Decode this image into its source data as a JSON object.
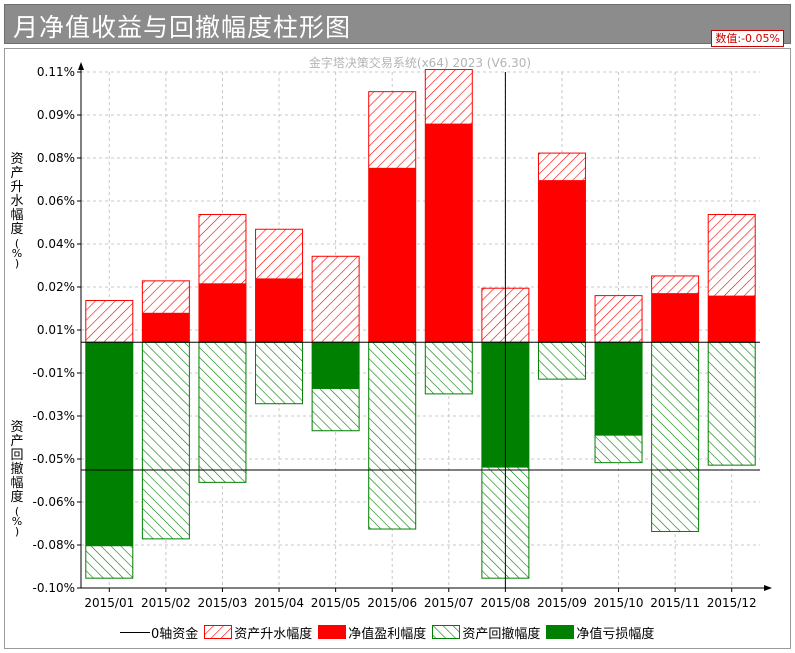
{
  "header": {
    "title": "月净值收益与回撤幅度柱形图",
    "value_label": "数值:",
    "value": "-0.05%"
  },
  "watermark": "金字塔决策交易系统(x64) 2023 (V6.30)",
  "colors": {
    "profit": "#ff0000",
    "rise_hatch": "#ff0000",
    "loss": "#008000",
    "drawdown_hatch": "#008000",
    "grid": "#c8c8c8",
    "title_bg": "#8c8c8c"
  },
  "chart_data": {
    "type": "bar",
    "categories": [
      "2015/01",
      "2015/02",
      "2015/03",
      "2015/04",
      "2015/05",
      "2015/06",
      "2015/07",
      "2015/08",
      "2015/09",
      "2015/10",
      "2015/11",
      "2015/12"
    ],
    "y_tick_labels": [
      "0.11%",
      "0.09%",
      "0.08%",
      "0.06%",
      "0.04%",
      "0.02%",
      "0.01%",
      "-0.01%",
      "-0.03%",
      "-0.05%",
      "-0.06%",
      "-0.08%",
      "-0.10%"
    ],
    "ylim": [
      -0.1,
      0.11
    ],
    "ylabel_top": "资产升水幅度(%)",
    "ylabel_bottom": "资产回撤幅度(%)",
    "series": [
      {
        "name": "资产升水幅度",
        "style": "hatch-red",
        "values": [
          0.017,
          0.025,
          0.052,
          0.046,
          0.035,
          0.102,
          0.111,
          0.022,
          0.077,
          0.019,
          0.027,
          0.052
        ]
      },
      {
        "name": "净值盈利幅度",
        "style": "solid-red",
        "values": [
          0.0,
          0.012,
          0.024,
          0.026,
          0.0,
          0.071,
          0.089,
          0.0,
          0.066,
          0.0,
          0.02,
          0.019
        ]
      },
      {
        "name": "资产回撤幅度",
        "style": "hatch-green",
        "values": [
          -0.096,
          -0.08,
          -0.057,
          -0.025,
          -0.036,
          -0.076,
          -0.021,
          -0.096,
          -0.015,
          -0.049,
          -0.077,
          -0.05
        ]
      },
      {
        "name": "净值亏损幅度",
        "style": "solid-green",
        "values": [
          -0.083,
          0.0,
          0.0,
          0.0,
          -0.019,
          0.0,
          0.0,
          -0.051,
          0.0,
          -0.038,
          0.0,
          0.0
        ]
      }
    ],
    "zero_line_label": "0轴资金",
    "crosshair": {
      "category": "2015/08",
      "value": -0.052
    },
    "grid": true,
    "legend_position": "bottom"
  }
}
